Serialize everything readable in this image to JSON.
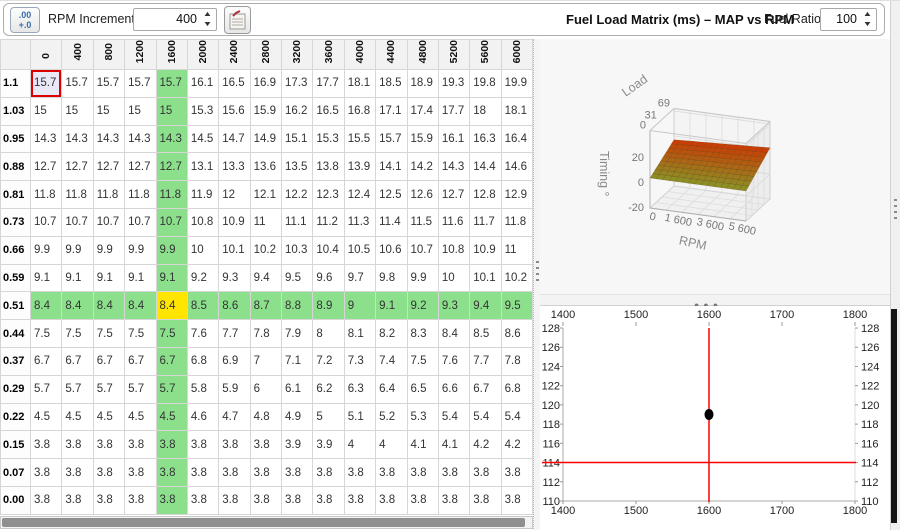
{
  "toolbar": {
    "decimal_icon": "decimal-places-icon",
    "rpm_increment_label": "RPM Increment",
    "rpm_increment_value": "400",
    "table_properties_icon": "table-properties-icon",
    "title": "Fuel Load Matrix (ms) – MAP vs RPM",
    "fuel_ratio_label": "Fuel Ratio",
    "fuel_ratio_value": "100"
  },
  "colors": {
    "highlight_green": "#8ce08c",
    "highlight_yellow": "#ffe500",
    "selected_fill": "#e9e9f8",
    "selected_border": "#dd0000",
    "crosshair_red": "#ff0000",
    "point_black": "#000000",
    "surface_low": "#8e8e24",
    "surface_high": "#c93e05"
  },
  "table": {
    "col_headers": [
      "0",
      "400",
      "800",
      "1200",
      "1600",
      "2000",
      "2400",
      "2800",
      "3200",
      "3600",
      "4000",
      "4400",
      "4800",
      "5200",
      "5600",
      "6000"
    ],
    "row_headers": [
      "1.1",
      "1.03",
      "0.95",
      "0.88",
      "0.81",
      "0.73",
      "0.66",
      "0.59",
      "0.51",
      "0.44",
      "0.37",
      "0.29",
      "0.22",
      "0.15",
      "0.07",
      "0.00"
    ],
    "rows": [
      [
        "15.7",
        "15.7",
        "15.7",
        "15.7",
        "15.7",
        "16.1",
        "16.5",
        "16.9",
        "17.3",
        "17.7",
        "18.1",
        "18.5",
        "18.9",
        "19.3",
        "19.8",
        "19.9"
      ],
      [
        "15",
        "15",
        "15",
        "15",
        "15",
        "15.3",
        "15.6",
        "15.9",
        "16.2",
        "16.5",
        "16.8",
        "17.1",
        "17.4",
        "17.7",
        "18",
        "18.1"
      ],
      [
        "14.3",
        "14.3",
        "14.3",
        "14.3",
        "14.3",
        "14.5",
        "14.7",
        "14.9",
        "15.1",
        "15.3",
        "15.5",
        "15.7",
        "15.9",
        "16.1",
        "16.3",
        "16.4"
      ],
      [
        "12.7",
        "12.7",
        "12.7",
        "12.7",
        "12.7",
        "13.1",
        "13.3",
        "13.6",
        "13.5",
        "13.8",
        "13.9",
        "14.1",
        "14.2",
        "14.3",
        "14.4",
        "14.6"
      ],
      [
        "11.8",
        "11.8",
        "11.8",
        "11.8",
        "11.8",
        "11.9",
        "12",
        "12.1",
        "12.2",
        "12.3",
        "12.4",
        "12.5",
        "12.6",
        "12.7",
        "12.8",
        "12.9"
      ],
      [
        "10.7",
        "10.7",
        "10.7",
        "10.7",
        "10.7",
        "10.8",
        "10.9",
        "11",
        "11.1",
        "11.2",
        "11.3",
        "11.4",
        "11.5",
        "11.6",
        "11.7",
        "11.8"
      ],
      [
        "9.9",
        "9.9",
        "9.9",
        "9.9",
        "9.9",
        "10",
        "10.1",
        "10.2",
        "10.3",
        "10.4",
        "10.5",
        "10.6",
        "10.7",
        "10.8",
        "10.9",
        "11"
      ],
      [
        "9.1",
        "9.1",
        "9.1",
        "9.1",
        "9.1",
        "9.2",
        "9.3",
        "9.4",
        "9.5",
        "9.6",
        "9.7",
        "9.8",
        "9.9",
        "10",
        "10.1",
        "10.2"
      ],
      [
        "8.4",
        "8.4",
        "8.4",
        "8.4",
        "8.4",
        "8.5",
        "8.6",
        "8.7",
        "8.8",
        "8.9",
        "9",
        "9.1",
        "9.2",
        "9.3",
        "9.4",
        "9.5"
      ],
      [
        "7.5",
        "7.5",
        "7.5",
        "7.5",
        "7.5",
        "7.6",
        "7.7",
        "7.8",
        "7.9",
        "8",
        "8.1",
        "8.2",
        "8.3",
        "8.4",
        "8.5",
        "8.6"
      ],
      [
        "6.7",
        "6.7",
        "6.7",
        "6.7",
        "6.7",
        "6.8",
        "6.9",
        "7",
        "7.1",
        "7.2",
        "7.3",
        "7.4",
        "7.5",
        "7.6",
        "7.7",
        "7.8"
      ],
      [
        "5.7",
        "5.7",
        "5.7",
        "5.7",
        "5.7",
        "5.8",
        "5.9",
        "6",
        "6.1",
        "6.2",
        "6.3",
        "6.4",
        "6.5",
        "6.6",
        "6.7",
        "6.8"
      ],
      [
        "4.5",
        "4.5",
        "4.5",
        "4.5",
        "4.5",
        "4.6",
        "4.7",
        "4.8",
        "4.9",
        "5",
        "5.1",
        "5.2",
        "5.3",
        "5.4",
        "5.4",
        "5.4"
      ],
      [
        "3.8",
        "3.8",
        "3.8",
        "3.8",
        "3.8",
        "3.8",
        "3.8",
        "3.8",
        "3.9",
        "3.9",
        "4",
        "4",
        "4.1",
        "4.1",
        "4.2",
        "4.2"
      ],
      [
        "3.8",
        "3.8",
        "3.8",
        "3.8",
        "3.8",
        "3.8",
        "3.8",
        "3.8",
        "3.8",
        "3.8",
        "3.8",
        "3.8",
        "3.8",
        "3.8",
        "3.8",
        "3.8"
      ],
      [
        "3.8",
        "3.8",
        "3.8",
        "3.8",
        "3.8",
        "3.8",
        "3.8",
        "3.8",
        "3.8",
        "3.8",
        "3.8",
        "3.8",
        "3.8",
        "3.8",
        "3.8",
        "3.8"
      ]
    ],
    "highlight": {
      "col_index": 4,
      "row_index": 8,
      "selected_row": 0,
      "selected_col": 0
    }
  },
  "chart_data": [
    {
      "type": "surface",
      "xlabel": "RPM",
      "ylabel": "Load",
      "zlabel": "Timing °",
      "x_ticks": [
        "0",
        "1 600",
        "3 600",
        "5 600"
      ],
      "y_ticks": [
        "0",
        "31",
        "69"
      ],
      "z_ticks": [
        "-20",
        "0",
        "20"
      ],
      "zlim": [
        -20,
        42
      ],
      "colormap": [
        "#8e8e24",
        "#c93e05"
      ],
      "description": "Nearly flat tilted surface, olive at front/low load rising to red-orange at back/high load"
    },
    {
      "type": "scatter",
      "xlim": [
        1400,
        1800
      ],
      "ylim": [
        110,
        128
      ],
      "x_ticks": [
        1400,
        1500,
        1600,
        1700,
        1800
      ],
      "y_ticks": [
        110,
        112,
        114,
        116,
        118,
        120,
        122,
        124,
        126,
        128
      ],
      "crosshair_x": 1600,
      "crosshair_y": 114,
      "points": [
        {
          "x": 1600,
          "y": 119
        }
      ],
      "grid": false,
      "mirrored_axes": true,
      "line_color": "#ff0000",
      "point_color": "#000000"
    }
  ]
}
